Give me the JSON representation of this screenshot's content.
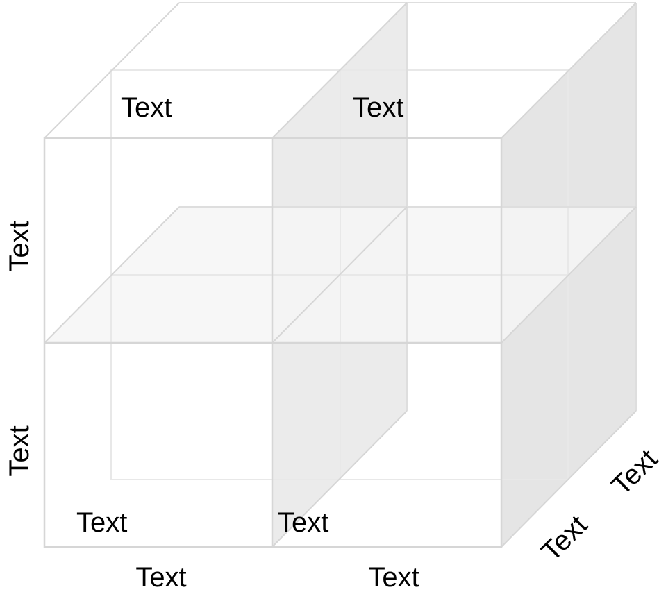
{
  "colors": {
    "background": "#ffffff",
    "edge": "#d6d6d6",
    "edge_light": "#ececec",
    "shade_side": "#e5e5e5",
    "shade_divider": "#ebebeb",
    "shade_divider_light": "#f6f6f6",
    "label_text": "#000000"
  },
  "labels": {
    "top_left_cell": "Text",
    "top_right_cell": "Text",
    "bottom_left_cell": "Text",
    "bottom_right_cell": "Text",
    "vertical_upper": "Text",
    "vertical_lower": "Text",
    "bottom_axis_left": "Text",
    "bottom_axis_right": "Text",
    "depth_axis_front": "Text",
    "depth_axis_back": "Text"
  }
}
